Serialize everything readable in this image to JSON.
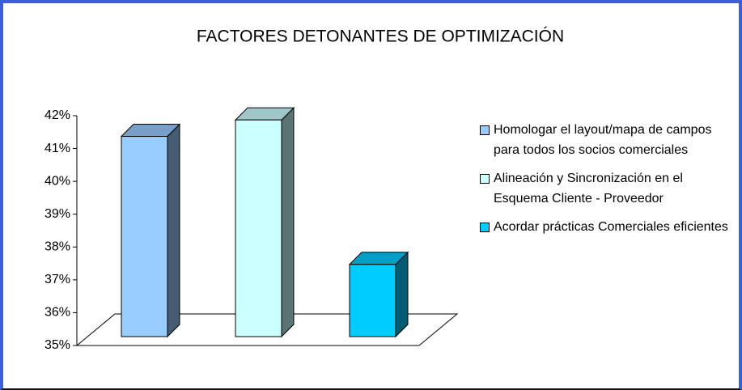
{
  "chart_data": {
    "type": "bar3d",
    "title": "FACTORES DETONANTES DE OPTIMIZACIÓN",
    "series": [
      {
        "name": "Homologar el layout/mapa de campos para todos los socios comerciales",
        "color": "#99ccff",
        "values": [
          41.1
        ]
      },
      {
        "name": "Alineación y Sincronización en el Esquema Cliente - Proveedor",
        "color": "#ccffff",
        "values": [
          41.6
        ]
      },
      {
        "name": "Acordar prácticas Comerciales eficientes",
        "color": "#00ccff",
        "values": [
          37.2
        ]
      }
    ],
    "ylim": [
      35,
      42
    ],
    "yticks": [
      {
        "value": 35,
        "label": "35%"
      },
      {
        "value": 36,
        "label": "36%"
      },
      {
        "value": 37,
        "label": "37%"
      },
      {
        "value": 38,
        "label": "38%"
      },
      {
        "value": 39,
        "label": "39%"
      },
      {
        "value": 40,
        "label": "40%"
      },
      {
        "value": 41,
        "label": "41%"
      },
      {
        "value": 42,
        "label": "42%"
      }
    ],
    "legend": "right"
  }
}
